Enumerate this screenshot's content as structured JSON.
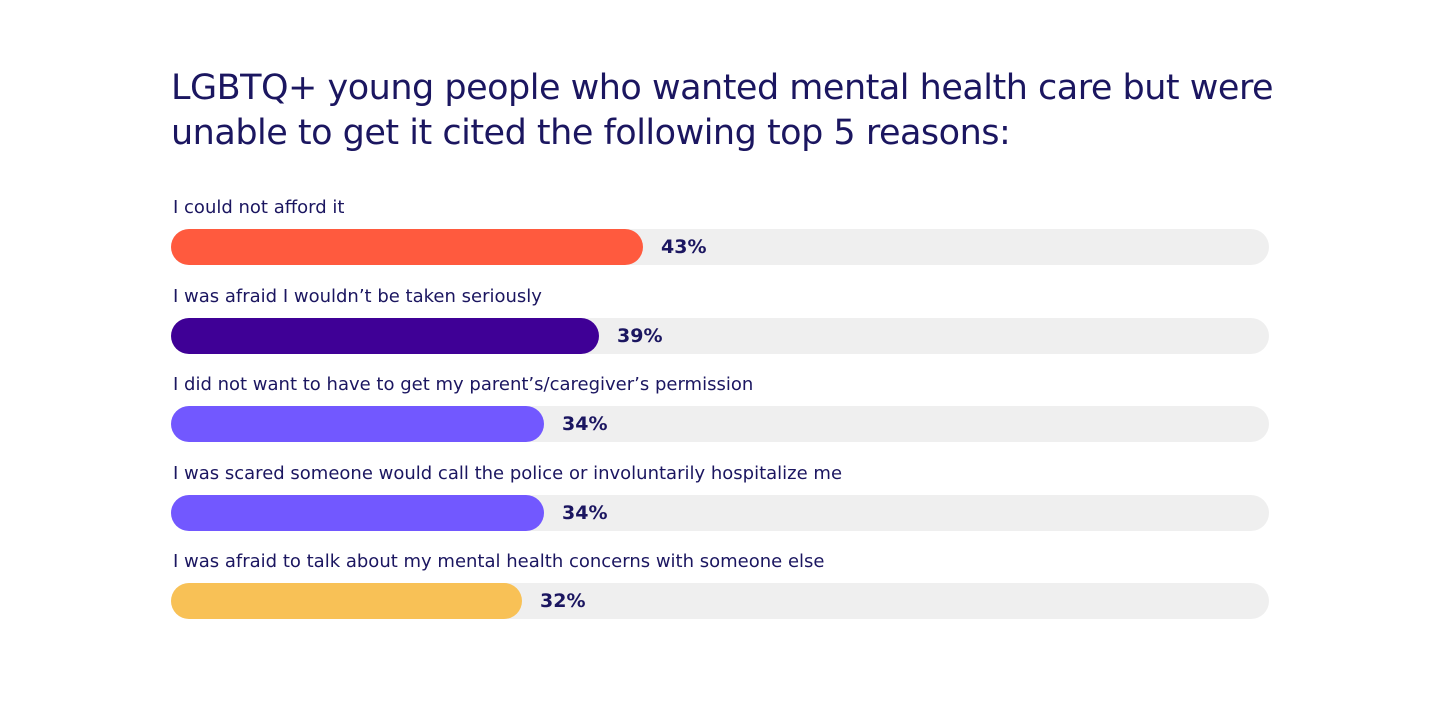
{
  "chart_data": {
    "type": "bar",
    "orientation": "horizontal",
    "title": "LGBTQ+ young people who wanted mental health care but were unable to get it cited the following top 5 reasons:",
    "categories": [
      "I could not afford it",
      "I was afraid I wouldn’t be taken seriously",
      "I did not want to have to get my parent’s/caregiver’s permission",
      "I was scared someone would call the police or involuntarily hospitalize me",
      "I was afraid to talk about my mental health concerns with someone else"
    ],
    "values": [
      43,
      39,
      34,
      34,
      32
    ],
    "value_labels": [
      "43%",
      "39%",
      "34%",
      "34%",
      "32%"
    ],
    "colors": [
      "#ff5a3e",
      "#3f0096",
      "#7258ff",
      "#7258ff",
      "#f8c156"
    ],
    "track_color": "#efefef",
    "xlim": [
      0,
      100
    ],
    "grid": false
  }
}
